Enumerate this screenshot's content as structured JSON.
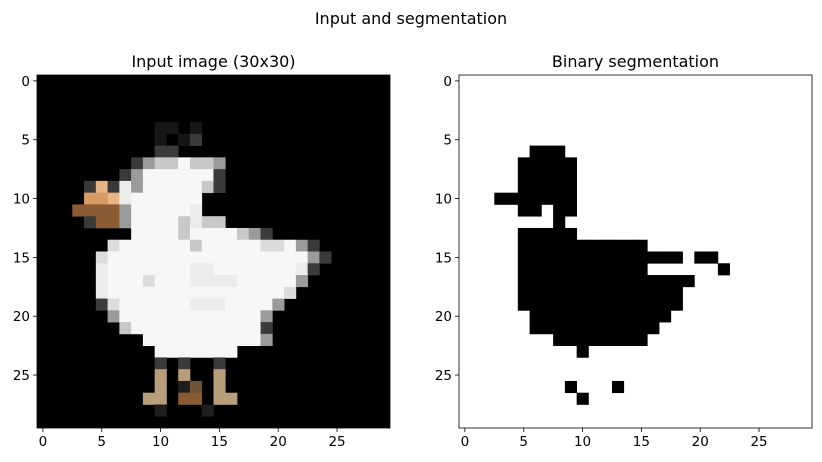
{
  "figure": {
    "suptitle": "Input and segmentation"
  },
  "chart_data": [
    {
      "type": "heatmap",
      "title": "Input image (30x30)",
      "xlabel": "",
      "ylabel": "",
      "xticks": [
        0,
        5,
        10,
        15,
        20,
        25
      ],
      "yticks": [
        0,
        5,
        10,
        15,
        20,
        25
      ],
      "xlim": [
        -0.5,
        29.5
      ],
      "ylim": [
        29.5,
        -0.5
      ],
      "colormap": "rgb image",
      "background_color": "#000000",
      "palette": {
        "W": "#f7f7f7",
        "w": "#ececec",
        "g": "#dcdcdc",
        "G": "#c8c8c8",
        "s": "#9b9b9b",
        "d": "#3a3a3a",
        "k": "#161616",
        "o": "#d79a62",
        "O": "#e7b483",
        "b": "#8a5a33",
        "t": "#b99e7c",
        "T": "#6e5335",
        "n": "#1e1e1e"
      },
      "pixels": [
        "..............................",
        "..............................",
        "..............................",
        "..............................",
        "..........kk.k................",
        "..........k.kd................",
        "..........dd..................",
        "........dsGGWGGs..............",
        ".......dsWWWWWWd..............",
        "....dOdwsWWWWWGd..............",
        "....ooOwWWWWWW................",
        "...bbbbsWWWWWw................",
        "....dbbsWWWWGwGG..............",
        "........WWWWGWWWWGsd..........",
        "......gWWWWWWGWWWWWggWsd......",
        ".....gWWWWWWWWWWWWWWWWWsd.....",
        ".....wWWWWWWWwwWWWWWWWwd......",
        ".....wWWWgWWWwwwwWWWWWs.......",
        ".....wWWWWWWWWWWWWWWWg........",
        ".....dgWWWWWWwwwWWWWs.........",
        "......sWWWWWWWWWWWWs..........",
        ".......GWWWWWWWWWWWd..........",
        ".........WWWWWWWWWWs..........",
        "..........WWWWWWW.............",
        "..........d.d..d..............",
        "..........t.t..t..............",
        "..........t.nT.t..............",
        ".........tt.bb.tt.............",
        "..........n...n...............",
        ".............................."
      ]
    },
    {
      "type": "heatmap",
      "title": "Binary segmentation",
      "xlabel": "",
      "ylabel": "",
      "xticks": [
        0,
        5,
        10,
        15,
        20,
        25
      ],
      "yticks": [
        0,
        5,
        10,
        15,
        20,
        25
      ],
      "xlim": [
        -0.5,
        29.5
      ],
      "ylim": [
        29.5,
        -0.5
      ],
      "colormap": "binary",
      "background_color": "#ffffff",
      "palette": {
        "#": "#000000"
      },
      "pixels": [
        "..............................",
        "..............................",
        "..............................",
        "..............................",
        "..............................",
        "..............................",
        "......###.....................",
        ".....#####....................",
        ".....#####....................",
        ".....#####....................",
        "...#######....................",
        ".....##.##....................",
        "........#.....................",
        ".....#####....................",
        ".....###########..............",
        ".....##############.##........",
        ".....###########......#.......",
        ".....###############..........",
        ".....##############...........",
        ".....##############...........",
        "......############............",
        "......###########.............",
        "........########..............",
        "..........#...................",
        "..............................",
        "..............................",
        ".........#...#................",
        "..........#...................",
        "..............................",
        ".............................."
      ]
    }
  ]
}
